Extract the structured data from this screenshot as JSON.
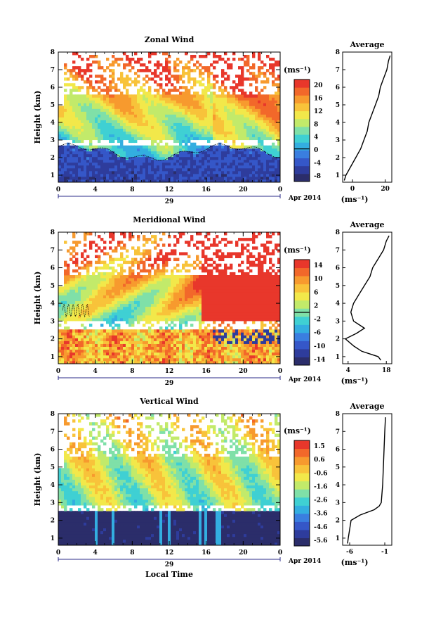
{
  "chart_data": [
    {
      "type": "heatmap",
      "title": "Zonal Wind",
      "xlabel": "",
      "ylabel": "Height (km)",
      "x_ticks": [
        "0",
        "4",
        "8",
        "12",
        "16",
        "20",
        "0"
      ],
      "y_ticks": [
        "1",
        "2",
        "3",
        "4",
        "5",
        "6",
        "7",
        "8"
      ],
      "xlim": [
        0,
        24
      ],
      "ylim": [
        0.6,
        8
      ],
      "date_day": "29",
      "date_label": "Apr 2014",
      "colorbar": {
        "unit": "(ms⁻¹)",
        "ticks": [
          "20",
          "16",
          "12",
          "8",
          "4",
          "0",
          "-4",
          "-8"
        ],
        "range": [
          -10,
          22
        ],
        "zero_line": 0
      },
      "average_profile": {
        "title": "Average",
        "xlabel": "(ms⁻¹)",
        "x_ticks": [
          "0",
          "20"
        ],
        "xlim": [
          -6,
          24
        ],
        "height": [
          0.7,
          1.0,
          1.5,
          2.0,
          2.5,
          3.0,
          3.5,
          4.0,
          4.5,
          5.0,
          5.5,
          6.0,
          6.5,
          7.0,
          7.5,
          7.8
        ],
        "values": [
          -5,
          -4,
          -1,
          2,
          5,
          7,
          9,
          10,
          12,
          14,
          16,
          17,
          19,
          21,
          22,
          23
        ]
      }
    },
    {
      "type": "heatmap",
      "title": "Meridional Wind",
      "xlabel": "",
      "ylabel": "Height (km)",
      "x_ticks": [
        "0",
        "4",
        "8",
        "12",
        "16",
        "20",
        "0"
      ],
      "y_ticks": [
        "1",
        "2",
        "3",
        "4",
        "5",
        "6",
        "7",
        "8"
      ],
      "xlim": [
        0,
        24
      ],
      "ylim": [
        0.6,
        8
      ],
      "date_day": "29",
      "date_label": "Apr 2014",
      "colorbar": {
        "unit": "(ms⁻¹)",
        "ticks": [
          "14",
          "10",
          "6",
          "2",
          "-2",
          "-6",
          "-10",
          "-14"
        ],
        "range": [
          -16,
          16
        ],
        "zero_line": 0
      },
      "average_profile": {
        "title": "Average",
        "xlabel": "(ms⁻¹)",
        "x_ticks": [
          "4",
          "18"
        ],
        "xlim": [
          2,
          20
        ],
        "height": [
          0.8,
          1.0,
          1.3,
          1.6,
          2.0,
          2.3,
          2.6,
          3.0,
          3.5,
          4.0,
          4.5,
          5.0,
          5.5,
          6.0,
          6.5,
          7.0,
          7.5,
          7.8
        ],
        "values": [
          16,
          15,
          9,
          6,
          3,
          7,
          10,
          6,
          5,
          6,
          8,
          10,
          12,
          13,
          15,
          17,
          18,
          19
        ]
      }
    },
    {
      "type": "heatmap",
      "title": "Vertical Wind",
      "xlabel": "Local Time",
      "ylabel": "Height (km)",
      "x_ticks": [
        "0",
        "4",
        "8",
        "12",
        "16",
        "20",
        "0"
      ],
      "y_ticks": [
        "1",
        "2",
        "3",
        "4",
        "5",
        "6",
        "7",
        "8"
      ],
      "xlim": [
        0,
        24
      ],
      "ylim": [
        0.6,
        8
      ],
      "date_day": "29",
      "date_label": "Apr 2014",
      "colorbar": {
        "unit": "(ms⁻¹)",
        "ticks": [
          "1.5",
          "0.6",
          "-0.6",
          "-1.6",
          "-2.6",
          "-3.6",
          "-4.6",
          "-5.6"
        ],
        "range": [
          -6,
          2
        ]
      },
      "average_profile": {
        "title": "Average",
        "xlabel": "(ms⁻¹)",
        "x_ticks": [
          "-6",
          "-1"
        ],
        "xlim": [
          -7,
          0
        ],
        "height": [
          0.7,
          1.0,
          1.5,
          2.0,
          2.3,
          2.6,
          2.8,
          3.0,
          3.5,
          4.0,
          5.0,
          6.0,
          7.0,
          7.8
        ],
        "values": [
          -6.3,
          -6.2,
          -6.0,
          -5.8,
          -4.5,
          -2.5,
          -1.8,
          -1.5,
          -1.4,
          -1.3,
          -1.2,
          -1.1,
          -1.0,
          -0.9
        ]
      }
    }
  ],
  "colors": {
    "ramp": [
      "#2b2d6a",
      "#2e3c9c",
      "#3557c8",
      "#3a7ee0",
      "#33aee0",
      "#3fd0d3",
      "#7fe0a8",
      "#c2ea6a",
      "#f2e84a",
      "#f8c33a",
      "#f79a2e",
      "#f2682a",
      "#e8372b"
    ],
    "line": "#000000",
    "frame": "#000000",
    "axis_blue": "#2b2b8a"
  }
}
